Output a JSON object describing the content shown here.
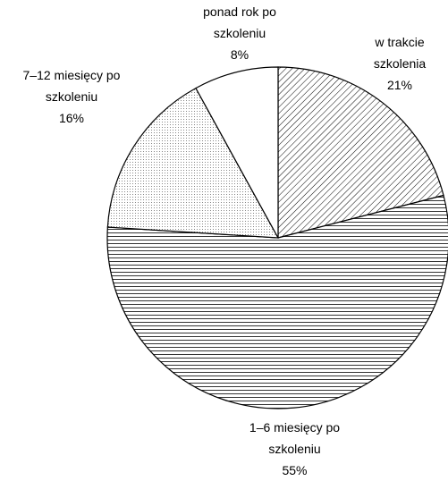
{
  "chart_data": {
    "type": "pie",
    "categories": [
      "w trakcie szkolenia",
      "1–6 miesięcy po szkoleniu",
      "7–12 miesięcy po szkoleniu",
      "ponad rok po szkoleniu"
    ],
    "values": [
      21,
      55,
      16,
      8
    ],
    "value_labels": [
      "21%",
      "55%",
      "16%",
      "8%"
    ],
    "patterns": [
      "diagonal",
      "horizontal",
      "dots",
      "none"
    ]
  }
}
